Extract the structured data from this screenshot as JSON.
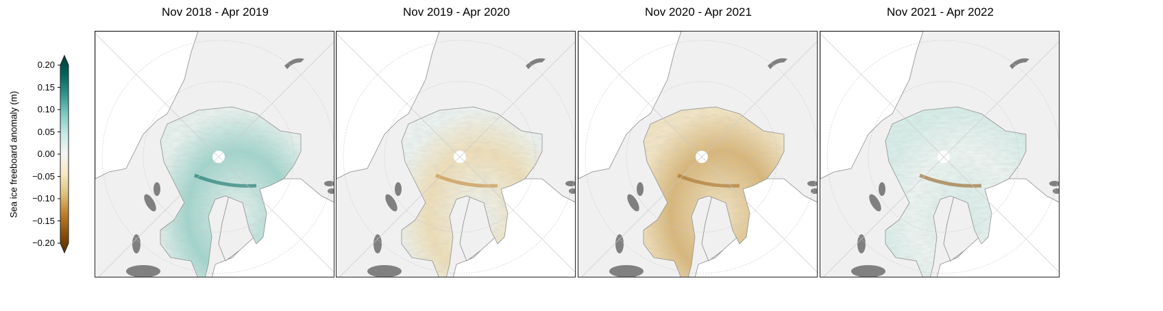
{
  "colorbar": {
    "label": "Sea ice freeboard anomaly (m)",
    "ticks": [
      "0.20",
      "0.15",
      "0.10",
      "0.05",
      "0.00",
      "−0.05",
      "−0.10",
      "−0.15",
      "−0.20"
    ],
    "range": [
      -0.2,
      0.2
    ],
    "extend": "both",
    "colormap": "BrBG",
    "colors": [
      "#543005",
      "#8c510a",
      "#bf812d",
      "#dfc27d",
      "#f6e8c3",
      "#f5f5f5",
      "#c7eae5",
      "#80cdc1",
      "#35978f",
      "#01665e",
      "#003c30"
    ]
  },
  "panels": [
    {
      "title": "Nov 2018 - Apr 2019",
      "tint_center": "#e8f3ef",
      "tint_edge": "#9fd6cc",
      "tint_accent": "#01665e"
    },
    {
      "title": "Nov 2019 - Apr 2020",
      "tint_center": "#eef5f2",
      "tint_edge": "#f0dfb6",
      "tint_accent": "#bf812d"
    },
    {
      "title": "Nov 2020 - Apr 2021",
      "tint_center": "#f4e6c4",
      "tint_edge": "#d9b574",
      "tint_accent": "#a0661b"
    },
    {
      "title": "Nov 2021 - Apr 2022",
      "tint_center": "#d8efea",
      "tint_edge": "#eef6f3",
      "tint_accent": "#8c510a"
    }
  ],
  "map": {
    "land_color": "#f0f0f0",
    "ocean_color": "#ffffff",
    "lake_color": "#808080",
    "coast_color": "#8a8a8a",
    "grid_color": "#c8c8c8"
  }
}
